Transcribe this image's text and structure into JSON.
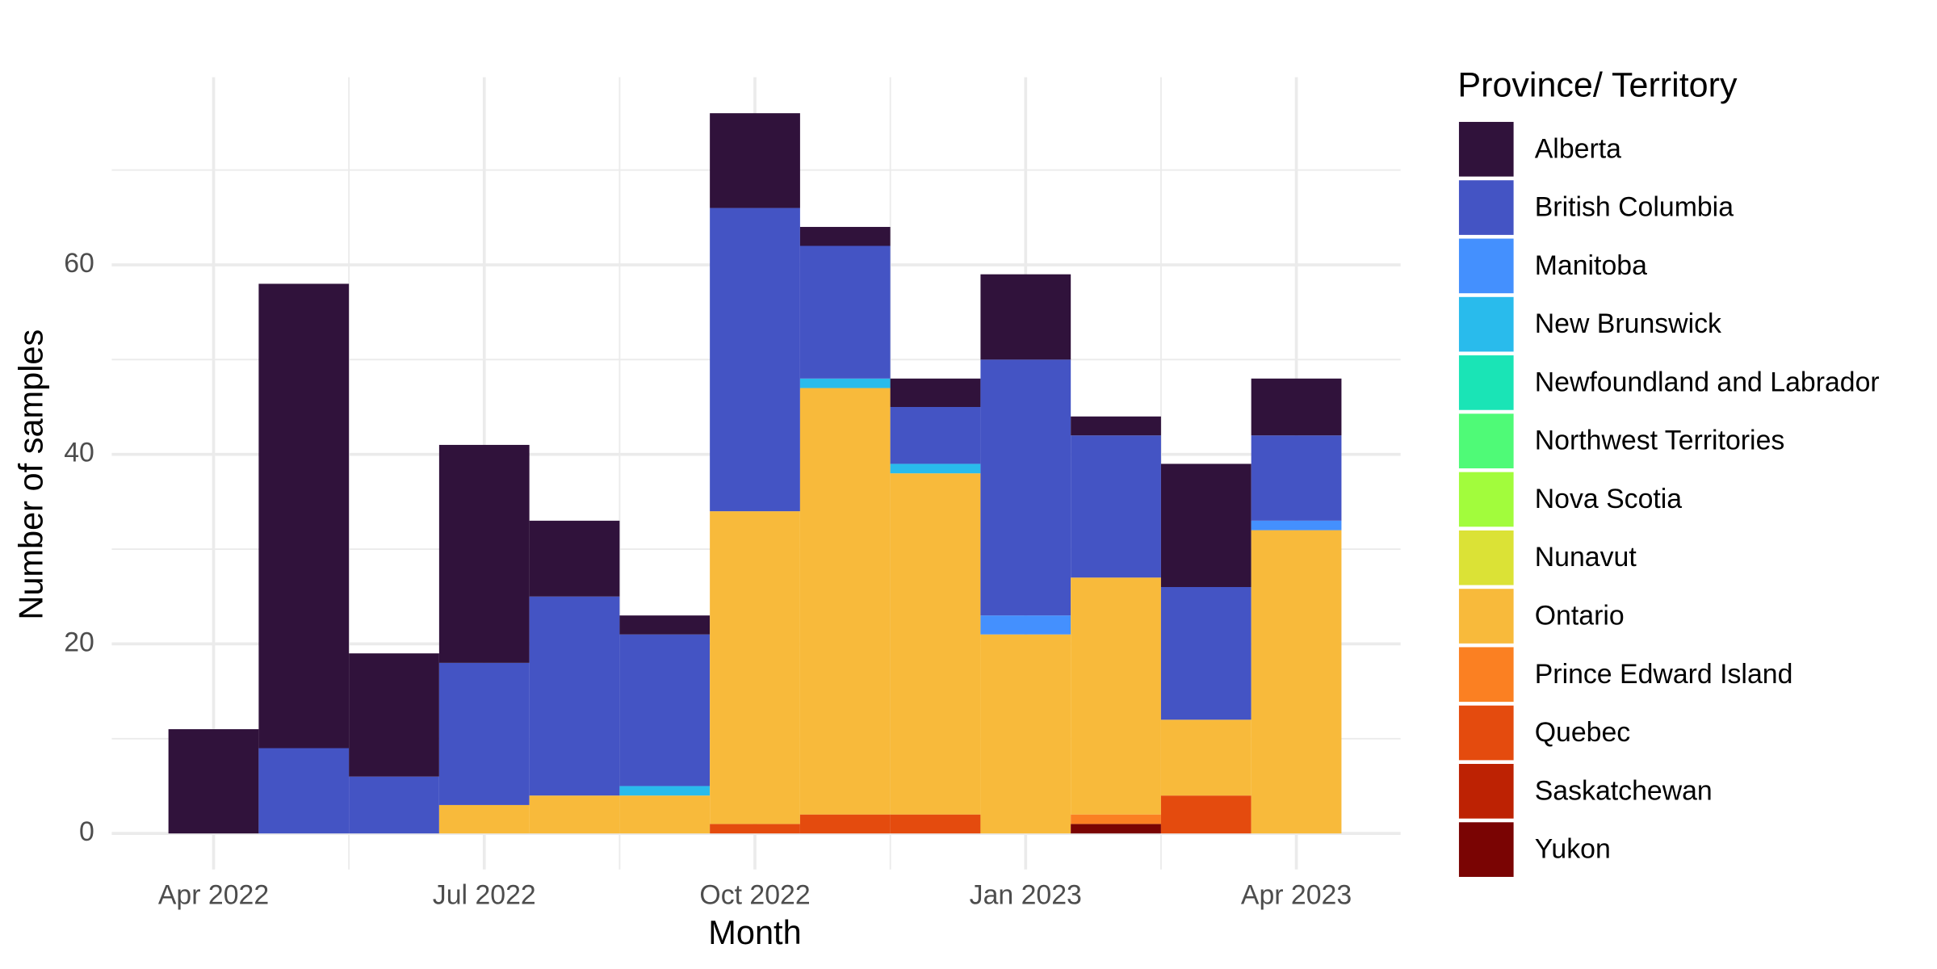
{
  "chart_data": {
    "type": "bar",
    "stacked": true,
    "x_label": "Month",
    "y_label": "Number of samples",
    "legend_title": "Province/ Territory",
    "legend_position": "right",
    "grid": true,
    "categories": [
      "Apr 2022",
      null,
      null,
      "Jul 2022",
      null,
      null,
      "Oct 2022",
      null,
      null,
      "Jan 2023",
      null,
      null,
      "Apr 2023"
    ],
    "ylim": [
      -3.8,
      79.8
    ],
    "yticks": [
      0,
      20,
      40,
      60
    ],
    "series": [
      {
        "name": "Alberta",
        "color": "#30123b",
        "values": [
          11,
          49,
          13,
          23,
          8,
          2,
          10,
          2,
          3,
          9,
          2,
          13,
          6
        ]
      },
      {
        "name": "British Columbia",
        "color": "#4454c4",
        "values": [
          0,
          9,
          6,
          15,
          21,
          16,
          32,
          14,
          6,
          27,
          15,
          14,
          9
        ]
      },
      {
        "name": "Manitoba",
        "color": "#4490fe",
        "values": [
          0,
          0,
          0,
          0,
          0,
          0,
          0,
          0,
          0,
          2,
          0,
          0,
          1
        ]
      },
      {
        "name": "New Brunswick",
        "color": "#29bbec",
        "values": [
          0,
          0,
          0,
          0,
          0,
          1,
          0,
          1,
          1,
          0,
          0,
          0,
          0
        ]
      },
      {
        "name": "Newfoundland and Labrador",
        "color": "#1ae4b6",
        "values": [
          0,
          0,
          0,
          0,
          0,
          0,
          0,
          0,
          0,
          0,
          0,
          0,
          0
        ]
      },
      {
        "name": "Northwest Territories",
        "color": "#4ffa77",
        "values": [
          0,
          0,
          0,
          0,
          0,
          0,
          0,
          0,
          0,
          0,
          0,
          0,
          0
        ]
      },
      {
        "name": "Nova Scotia",
        "color": "#a2fc3c",
        "values": [
          0,
          0,
          0,
          0,
          0,
          0,
          0,
          0,
          0,
          0,
          0,
          0,
          0
        ]
      },
      {
        "name": "Nunavut",
        "color": "#dbe236",
        "values": [
          0,
          0,
          0,
          0,
          0,
          0,
          0,
          0,
          0,
          0,
          0,
          0,
          0
        ]
      },
      {
        "name": "Ontario",
        "color": "#f8ba3b",
        "values": [
          0,
          0,
          0,
          3,
          4,
          4,
          33,
          45,
          36,
          21,
          25,
          8,
          32
        ]
      },
      {
        "name": "Prince Edward Island",
        "color": "#fb8022",
        "values": [
          0,
          0,
          0,
          0,
          0,
          0,
          0,
          0,
          0,
          0,
          1,
          0,
          0
        ]
      },
      {
        "name": "Quebec",
        "color": "#e44b0e",
        "values": [
          0,
          0,
          0,
          0,
          0,
          0,
          1,
          2,
          2,
          0,
          0,
          4,
          0
        ]
      },
      {
        "name": "Saskatchewan",
        "color": "#bd2203",
        "values": [
          0,
          0,
          0,
          0,
          0,
          0,
          0,
          0,
          0,
          0,
          0,
          0,
          0
        ]
      },
      {
        "name": "Yukon",
        "color": "#7a0403",
        "values": [
          0,
          0,
          0,
          0,
          0,
          0,
          0,
          0,
          0,
          0,
          1,
          0,
          0
        ]
      }
    ]
  }
}
